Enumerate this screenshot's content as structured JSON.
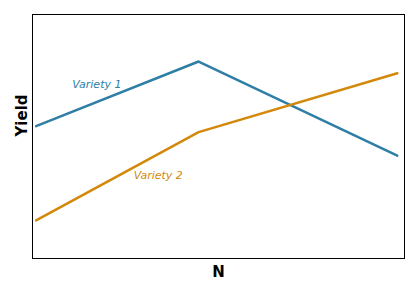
{
  "chart_data": {
    "type": "line",
    "x": [
      0,
      0.45,
      1.0
    ],
    "series": [
      {
        "name": "Variety 1",
        "color": "#2e7ea6",
        "values": [
          0.6,
          0.82,
          0.5
        ]
      },
      {
        "name": "Variety 2",
        "color": "#d4880a",
        "values": [
          0.28,
          0.58,
          0.78
        ]
      }
    ],
    "annotations": [
      {
        "text": "Variety 1",
        "x": 0.1,
        "y": 0.73,
        "color": "#2e7ea6"
      },
      {
        "text": "Variety 2",
        "x": 0.27,
        "y": 0.42,
        "color": "#d4880a"
      }
    ],
    "xlabel": "N",
    "ylabel": "Yield",
    "xlim": [
      -0.01,
      1.02
    ],
    "ylim": [
      0.15,
      0.98
    ],
    "xticks": [],
    "yticks": [],
    "tick_labels": false
  }
}
